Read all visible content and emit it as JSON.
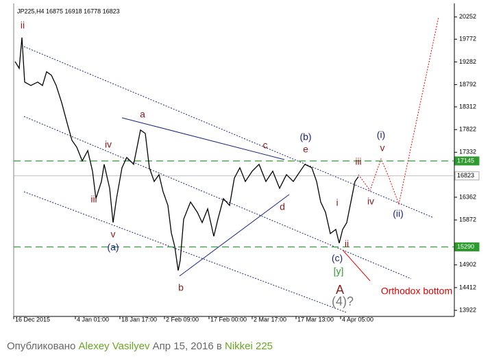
{
  "chart_data": {
    "type": "line",
    "title": "JP225,H4  16875 16918 16778 16823",
    "x": [
      2,
      8,
      12,
      16,
      25,
      35,
      42,
      48,
      55,
      62,
      70,
      78,
      85,
      92,
      100,
      108,
      115,
      120,
      128,
      132,
      140,
      145,
      150,
      158,
      165,
      175,
      185,
      192,
      198,
      205,
      212,
      218,
      225,
      230,
      235,
      240,
      243,
      248,
      258,
      268,
      275,
      283,
      292,
      298,
      306,
      315,
      322,
      330,
      338,
      348,
      358,
      368,
      378,
      388,
      398,
      408,
      418,
      425,
      435,
      442,
      448,
      455,
      462,
      470,
      475,
      480,
      486,
      492,
      498,
      503
    ],
    "series": [
      {
        "name": "JP225",
        "color": "#000000",
        "values": [
          19291,
          19143,
          19808,
          18847,
          18773,
          18847,
          18773,
          19069,
          18995,
          18773,
          18403,
          17960,
          17590,
          17442,
          17146,
          17368,
          16924,
          16333,
          16702,
          17072,
          16554,
          15815,
          16333,
          16998,
          17220,
          17072,
          17812,
          17738,
          16998,
          16702,
          16850,
          16481,
          16185,
          15593,
          15298,
          14780,
          15002,
          15889,
          16259,
          16037,
          15815,
          16111,
          15519,
          15889,
          16333,
          16185,
          16776,
          16998,
          16702,
          16924,
          17072,
          16702,
          16924,
          16554,
          16850,
          16702,
          16924,
          17072,
          16998,
          16702,
          16259,
          16037,
          15578,
          15667,
          15372,
          15667,
          15815,
          16259,
          16702,
          16806
        ]
      }
    ],
    "xlim": [
      0,
      643
    ],
    "xticks": [
      {
        "value": 0,
        "label": "16 Dec 2015"
      },
      {
        "value": 90,
        "label": "4 Jan 01:00"
      },
      {
        "value": 155,
        "label": "18 Jan 17:00"
      },
      {
        "value": 220,
        "label": "2 Feb 09:00"
      },
      {
        "value": 285,
        "label": "17 Feb 00:00"
      },
      {
        "value": 348,
        "label": "2 Mar 17:00"
      },
      {
        "value": 412,
        "label": "17 Mar 13:00"
      },
      {
        "value": 477,
        "label": "4 Apr 05:00"
      }
    ],
    "ylim": [
      13790,
      20470
    ],
    "yticks": [
      20252,
      19772,
      19282,
      18792,
      18312,
      17822,
      17332,
      16362,
      15872,
      14902,
      14412,
      13922
    ],
    "levels": [
      {
        "value": 17145,
        "color": "#2e9b2e"
      },
      {
        "value": 15290,
        "color": "#2e9b2e"
      }
    ],
    "last": 16823,
    "annotations": [
      {
        "text": "ii",
        "color": "#8b1a1a"
      },
      {
        "text": "a",
        "color": "#8b1a1a"
      },
      {
        "text": "iv",
        "color": "#8b1a1a"
      },
      {
        "text": "iii",
        "color": "#8b1a1a"
      },
      {
        "text": "v",
        "color": "#8b1a1a"
      },
      {
        "text": "(a)",
        "color": "#1a237e"
      },
      {
        "text": "b",
        "color": "#8b1a1a"
      },
      {
        "text": "c",
        "color": "#8b1a1a"
      },
      {
        "text": "(b)",
        "color": "#1a237e"
      },
      {
        "text": "e",
        "color": "#8b1a1a"
      },
      {
        "text": "d",
        "color": "#8b1a1a"
      },
      {
        "text": "i",
        "color": "#8b1a1a"
      },
      {
        "text": "ii",
        "color": "#8b1a1a"
      },
      {
        "text": "(c)",
        "color": "#1a237e"
      },
      {
        "text": "[y]",
        "color": "#2e9b2e"
      },
      {
        "text": "A",
        "color": "#8b1a1a"
      },
      {
        "text": "(4)?",
        "color": "#777777"
      },
      {
        "text": "iii",
        "color": "#8b1a1a"
      },
      {
        "text": "(i)",
        "color": "#1a237e"
      },
      {
        "text": "v",
        "color": "#8b1a1a"
      },
      {
        "text": "iv",
        "color": "#8b1a1a"
      },
      {
        "text": "(ii)",
        "color": "#1a237e"
      },
      {
        "text": "Orthodox bottom",
        "color": "#e00000"
      }
    ]
  },
  "footer": {
    "prefix": "Опубликовано",
    "author": "Alexey Vasilyev",
    "date": "Апр 15, 2016 в",
    "market": "Nikkei 225"
  }
}
